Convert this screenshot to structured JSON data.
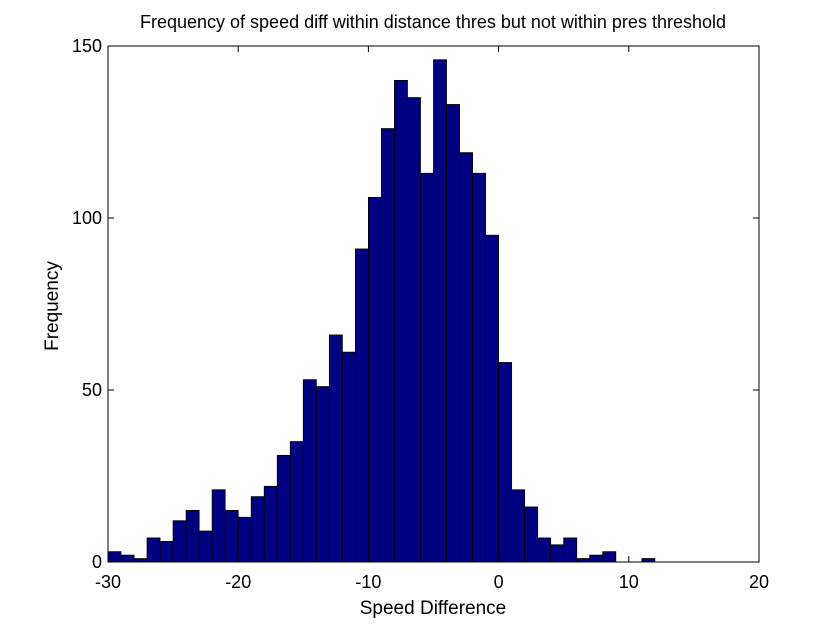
{
  "chart_data": {
    "type": "bar",
    "title": "Frequency of speed diff within distance thres but not within pres threshold",
    "xlabel": "Speed Difference",
    "ylabel": "Frequency",
    "xlim": [
      -30,
      20
    ],
    "ylim": [
      0,
      150
    ],
    "xticks": [
      -30,
      -20,
      -10,
      0,
      10,
      20
    ],
    "yticks": [
      0,
      50,
      100,
      150
    ],
    "grid": false,
    "bar_color": "#000080",
    "bin_width": 1,
    "bins": [
      {
        "x0": -30,
        "x1": -29,
        "value": 3
      },
      {
        "x0": -29,
        "x1": -28,
        "value": 2
      },
      {
        "x0": -28,
        "x1": -27,
        "value": 1
      },
      {
        "x0": -27,
        "x1": -26,
        "value": 7
      },
      {
        "x0": -26,
        "x1": -25,
        "value": 6
      },
      {
        "x0": -25,
        "x1": -24,
        "value": 12
      },
      {
        "x0": -24,
        "x1": -23,
        "value": 15
      },
      {
        "x0": -23,
        "x1": -22,
        "value": 9
      },
      {
        "x0": -22,
        "x1": -21,
        "value": 21
      },
      {
        "x0": -21,
        "x1": -20,
        "value": 15
      },
      {
        "x0": -20,
        "x1": -19,
        "value": 13
      },
      {
        "x0": -19,
        "x1": -18,
        "value": 19
      },
      {
        "x0": -18,
        "x1": -17,
        "value": 22
      },
      {
        "x0": -17,
        "x1": -16,
        "value": 31
      },
      {
        "x0": -16,
        "x1": -15,
        "value": 35
      },
      {
        "x0": -15,
        "x1": -14,
        "value": 53
      },
      {
        "x0": -14,
        "x1": -13,
        "value": 51
      },
      {
        "x0": -13,
        "x1": -12,
        "value": 66
      },
      {
        "x0": -12,
        "x1": -11,
        "value": 61
      },
      {
        "x0": -11,
        "x1": -10,
        "value": 91
      },
      {
        "x0": -10,
        "x1": -9,
        "value": 106
      },
      {
        "x0": -9,
        "x1": -8,
        "value": 126
      },
      {
        "x0": -8,
        "x1": -7,
        "value": 140
      },
      {
        "x0": -7,
        "x1": -6,
        "value": 135
      },
      {
        "x0": -6,
        "x1": -5,
        "value": 113
      },
      {
        "x0": -5,
        "x1": -4,
        "value": 146
      },
      {
        "x0": -4,
        "x1": -3,
        "value": 133
      },
      {
        "x0": -3,
        "x1": -2,
        "value": 119
      },
      {
        "x0": -2,
        "x1": -1,
        "value": 113
      },
      {
        "x0": -1,
        "x1": 0,
        "value": 95
      },
      {
        "x0": 0,
        "x1": 1,
        "value": 58
      },
      {
        "x0": 1,
        "x1": 2,
        "value": 21
      },
      {
        "x0": 2,
        "x1": 3,
        "value": 16
      },
      {
        "x0": 3,
        "x1": 4,
        "value": 7
      },
      {
        "x0": 4,
        "x1": 5,
        "value": 5
      },
      {
        "x0": 5,
        "x1": 6,
        "value": 7
      },
      {
        "x0": 6,
        "x1": 7,
        "value": 1
      },
      {
        "x0": 7,
        "x1": 8,
        "value": 2
      },
      {
        "x0": 8,
        "x1": 9,
        "value": 3
      },
      {
        "x0": 9,
        "x1": 10,
        "value": 0
      },
      {
        "x0": 10,
        "x1": 11,
        "value": 0
      },
      {
        "x0": 11,
        "x1": 12,
        "value": 1
      }
    ]
  }
}
